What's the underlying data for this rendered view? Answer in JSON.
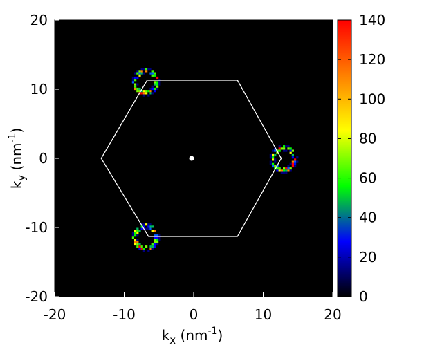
{
  "chart_data": {
    "type": "heatmap",
    "title": "",
    "xlabel": {
      "base": "k",
      "sub": "x",
      "unit_open": " (nm",
      "sup": "-1",
      "unit_close": ")"
    },
    "ylabel": {
      "base": "k",
      "sub": "y",
      "unit_open": " (nm",
      "sup": "-1",
      "unit_close": ")"
    },
    "xlim": [
      -20,
      20
    ],
    "ylim": [
      -20,
      20
    ],
    "x_ticks": [
      "-20",
      "-10",
      "0",
      "10",
      "20"
    ],
    "x_tick_values": [
      -20,
      -10,
      0,
      10,
      20
    ],
    "y_ticks": [
      "-20",
      "-10",
      "0",
      "10",
      "20"
    ],
    "y_tick_values": [
      -20,
      -10,
      0,
      10,
      20
    ],
    "background_color": "#000000",
    "colorbar": {
      "range": [
        0,
        140
      ],
      "ticks": [
        "0",
        "20",
        "40",
        "60",
        "80",
        "100",
        "120",
        "140"
      ],
      "tick_values": [
        0,
        20,
        40,
        60,
        80,
        100,
        120,
        140
      ],
      "colors": [
        "#000000",
        "#0000ff",
        "#00ff00",
        "#ffff00",
        "#ff8000",
        "#ff0000"
      ]
    },
    "hexagon_vertices": [
      [
        6.3,
        11.3
      ],
      [
        12.6,
        0
      ],
      [
        6.3,
        -11.3
      ],
      [
        -6.5,
        -11.3
      ],
      [
        -13.3,
        0
      ],
      [
        -6.7,
        11.3
      ]
    ],
    "hexagon_color": "#ffffff",
    "center_point": [
      -0.3,
      0
    ],
    "rings": [
      {
        "cx": 12.8,
        "cy": 0,
        "r": 1.6
      },
      {
        "cx": -7.0,
        "cy": 11.2,
        "r": 1.6
      },
      {
        "cx": -7.0,
        "cy": -11.3,
        "r": 1.6
      }
    ]
  }
}
